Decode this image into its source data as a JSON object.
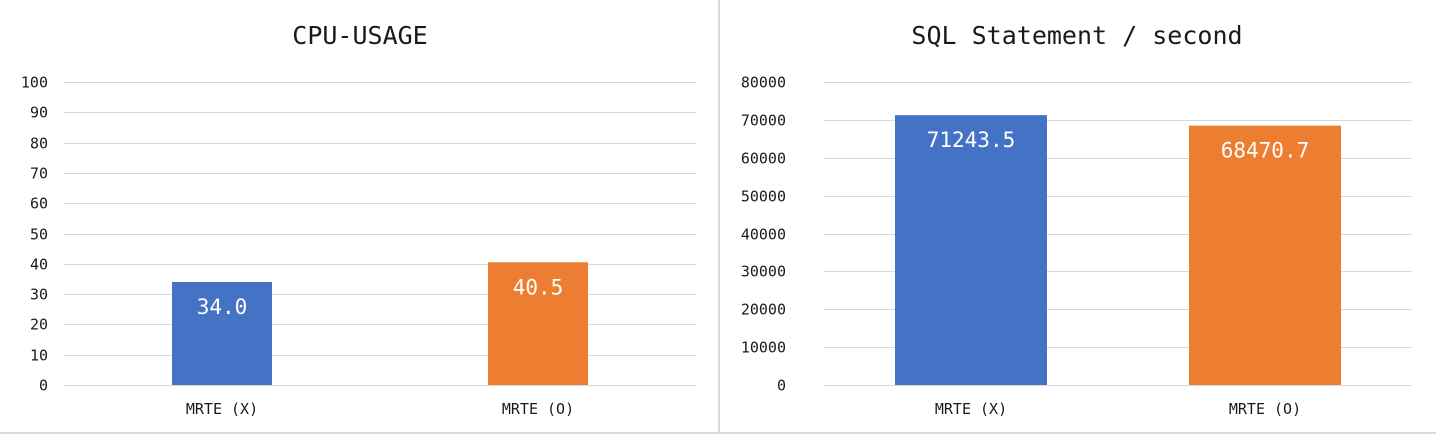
{
  "chart_data": [
    {
      "type": "bar",
      "title": "CPU-USAGE",
      "categories": [
        "MRTE (X)",
        "MRTE (O)"
      ],
      "values": [
        34.0,
        40.5
      ],
      "value_labels": [
        "34.0",
        "40.5"
      ],
      "bar_colors": [
        "#4472c4",
        "#ed7d31"
      ],
      "ylim": [
        0,
        100
      ],
      "yticks": [
        0,
        10,
        20,
        30,
        40,
        50,
        60,
        70,
        80,
        90,
        100
      ],
      "grid": true
    },
    {
      "type": "bar",
      "title": "SQL Statement / second",
      "categories": [
        "MRTE (X)",
        "MRTE (O)"
      ],
      "values": [
        71243.5,
        68470.7
      ],
      "value_labels": [
        "71243.5",
        "68470.7"
      ],
      "bar_colors": [
        "#4472c4",
        "#ed7d31"
      ],
      "ylim": [
        0,
        80000
      ],
      "yticks": [
        0,
        10000,
        20000,
        30000,
        40000,
        50000,
        60000,
        70000,
        80000
      ],
      "grid": true
    }
  ]
}
